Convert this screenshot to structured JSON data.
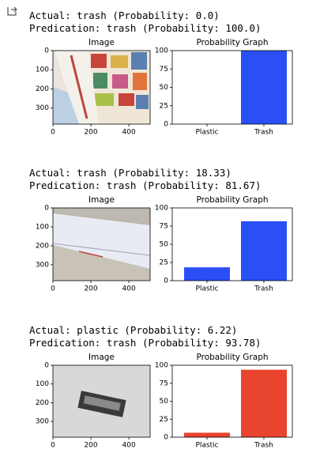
{
  "outputs": [
    {
      "actual": "Actual: trash (Probability: 0.0)",
      "prediction": "Predication: trash (Probability: 100.0)",
      "image": {
        "title": "Image",
        "xlim": [
          0,
          512
        ],
        "ylim": [
          0,
          384
        ],
        "y_inverted": true,
        "xticks": [
          0,
          200,
          400
        ],
        "yticks": [
          0,
          100,
          200,
          300
        ]
      }
    },
    {
      "actual": "Actual: trash (Probability: 18.33)",
      "prediction": "Predication: trash (Probability: 81.67)",
      "image": {
        "title": "Image",
        "xlim": [
          0,
          512
        ],
        "ylim": [
          0,
          384
        ],
        "y_inverted": true,
        "xticks": [
          0,
          200,
          400
        ],
        "yticks": [
          0,
          100,
          200,
          300
        ]
      }
    },
    {
      "actual": "Actual: plastic (Probability: 6.22)",
      "prediction": "Predication: trash (Probability: 93.78)",
      "image": {
        "title": "Image",
        "xlim": [
          0,
          512
        ],
        "ylim": [
          0,
          384
        ],
        "y_inverted": true,
        "xticks": [
          0,
          200,
          400
        ],
        "yticks": [
          0,
          100,
          200,
          300
        ]
      }
    }
  ],
  "chart_data": [
    {
      "type": "bar",
      "title": "Probability Graph",
      "categories": [
        "Plastic",
        "Trash"
      ],
      "values": [
        0.0,
        100.0
      ],
      "color": "#2a4ff6",
      "ylim": [
        0,
        100
      ],
      "yticks": [
        0,
        25,
        50,
        75,
        100
      ]
    },
    {
      "type": "bar",
      "title": "Probability Graph",
      "categories": [
        "Plastic",
        "Trash"
      ],
      "values": [
        18.33,
        81.67
      ],
      "color": "#2a4ff6",
      "ylim": [
        0,
        100
      ],
      "yticks": [
        0,
        25,
        50,
        75,
        100
      ]
    },
    {
      "type": "bar",
      "title": "Probability Graph",
      "categories": [
        "Plastic",
        "Trash"
      ],
      "values": [
        6.22,
        93.78
      ],
      "color": "#e8442e",
      "ylim": [
        0,
        100
      ],
      "yticks": [
        0,
        25,
        50,
        75,
        100
      ]
    }
  ]
}
